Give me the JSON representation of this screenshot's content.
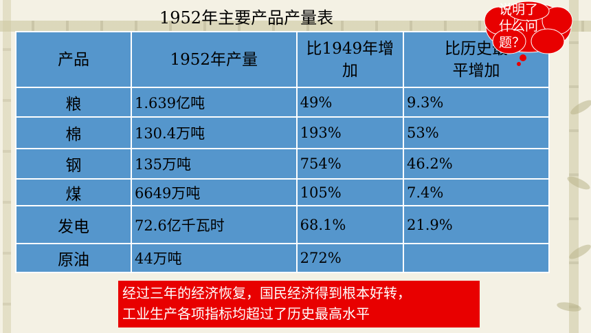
{
  "title": "1952年主要产品产量表",
  "headers": [
    "产品",
    "1952年产量",
    "比1949年增加",
    "比历史最高水平增加"
  ],
  "header_lines": {
    "col3": [
      "比1949年增",
      "加"
    ],
    "col4": [
      "比历史最",
      "平增加"
    ]
  },
  "rows": [
    {
      "product": "粮",
      "output": "1.639亿吨",
      "vs1949": "49%",
      "vsHistoric": "9.3%"
    },
    {
      "product": "棉",
      "output": "130.4万吨",
      "vs1949": "193%",
      "vsHistoric": "53%"
    },
    {
      "product": "钢",
      "output": "135万吨",
      "vs1949": "754%",
      "vsHistoric": "46.2%"
    },
    {
      "product": "煤",
      "output": "6649万吨",
      "vs1949": "105%",
      "vsHistoric": "7.4%"
    },
    {
      "product": "发电",
      "output": "72.6亿千瓦时",
      "vs1949": "68.1%",
      "vsHistoric": "21.9%"
    },
    {
      "product": "原油",
      "output": "44万吨",
      "vs1949": "272%",
      "vsHistoric": ""
    }
  ],
  "callout": {
    "lines": [
      "说明了",
      "什么问",
      "题？"
    ],
    "color": "#e80000"
  },
  "note": {
    "lines": [
      "经过三年的经济恢复，国民经济得到根本好转，",
      "工业生产各项指标均超过了历史最高水平"
    ],
    "background": "#e80000"
  },
  "colors": {
    "table_bg": "#5596cc",
    "border": "#ffffff"
  }
}
